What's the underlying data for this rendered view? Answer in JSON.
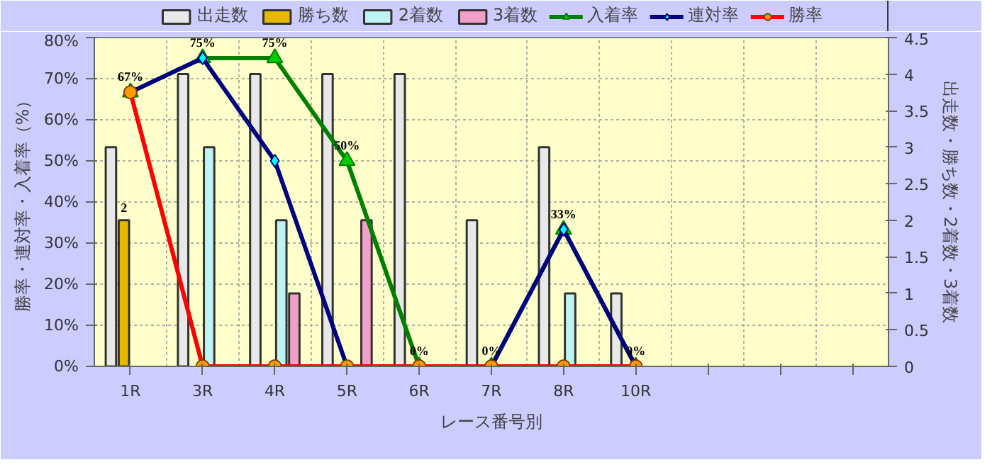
{
  "chart_data": {
    "type": "bar",
    "xlabel": "レース番号別",
    "ylabel": "勝率・連対率・入着率（%）",
    "y2label": "出走数・勝ち数・2着数・3着数",
    "categories": [
      "1R",
      "3R",
      "4R",
      "5R",
      "6R",
      "7R",
      "8R",
      "10R",
      null,
      null,
      null
    ],
    "series": [
      {
        "name": "出走数",
        "color": "#e8e8e8",
        "axis": "y2",
        "values": [
          3,
          4,
          4,
          4,
          4,
          2,
          3,
          1,
          null,
          null,
          null
        ]
      },
      {
        "name": "勝ち数",
        "color": "#e6b800",
        "axis": "y2",
        "values": [
          2,
          0,
          0,
          0,
          0,
          0,
          0,
          0,
          null,
          null,
          null
        ],
        "value_labels": [
          "2",
          null,
          null,
          null,
          null,
          null,
          null,
          null,
          null,
          null,
          null
        ]
      },
      {
        "name": "2着数",
        "color": "#c0f4f4",
        "axis": "y2",
        "values": [
          0,
          3,
          2,
          0,
          0,
          0,
          1,
          0,
          null,
          null,
          null
        ]
      },
      {
        "name": "3着数",
        "color": "#f0a0c8",
        "axis": "y2",
        "values": [
          0,
          0,
          1,
          2,
          0,
          0,
          0,
          0,
          null,
          null,
          null
        ]
      },
      {
        "name": "入着率",
        "type": "line",
        "color": "#008000",
        "marker": "triangle",
        "values": [
          66.7,
          75,
          75,
          50,
          0,
          0,
          33.3,
          0,
          null,
          null,
          null
        ],
        "value_labels": [
          "67%",
          "75%",
          "75%",
          "50%",
          "0%",
          "0%",
          "33%",
          "0%",
          null,
          null,
          null
        ]
      },
      {
        "name": "連対率",
        "type": "line",
        "color": "#000080",
        "marker": "diamond",
        "values": [
          66.7,
          75,
          50,
          0,
          0,
          0,
          33.3,
          0,
          null,
          null,
          null
        ]
      },
      {
        "name": "勝率",
        "type": "line",
        "color": "#ff0000",
        "marker": "circle",
        "values": [
          66.7,
          0,
          0,
          0,
          0,
          0,
          0,
          0,
          null,
          null,
          null
        ]
      }
    ],
    "ylim": [
      0,
      80
    ],
    "yticks": [
      {
        "value": 0,
        "label": "0%"
      },
      {
        "value": 10,
        "label": "10%"
      },
      {
        "value": 20,
        "label": "20%"
      },
      {
        "value": 30,
        "label": "30%"
      },
      {
        "value": 40,
        "label": "40%"
      },
      {
        "value": 50,
        "label": "50%"
      },
      {
        "value": 60,
        "label": "60%"
      },
      {
        "value": 70,
        "label": "70%"
      },
      {
        "value": 80,
        "label": "80%"
      }
    ],
    "y2lim": [
      0,
      4.5
    ],
    "y2ticks": [
      0,
      0.5,
      1,
      1.5,
      2,
      2.5,
      3,
      3.5,
      4,
      4.5
    ],
    "grid": true,
    "legend": "top"
  }
}
